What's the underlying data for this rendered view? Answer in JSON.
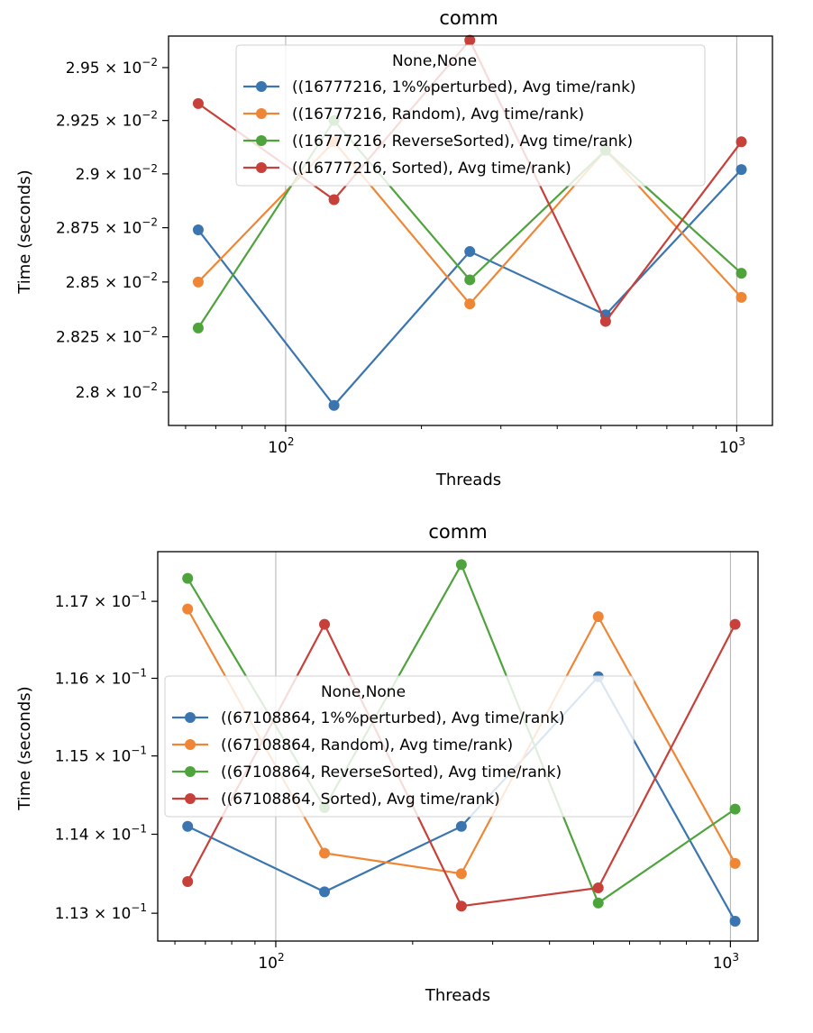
{
  "chart_data": [
    {
      "type": "line",
      "title": "comm",
      "xlabel": "Threads",
      "ylabel": "Time (seconds)",
      "xscale": "log",
      "yscale": "log",
      "grid": "major x",
      "legend_title": "None,None",
      "legend_position": "upper center",
      "x": [
        64,
        128,
        256,
        512,
        1024
      ],
      "xlim": [
        55,
        1200
      ],
      "ylim": [
        0.02785,
        0.02965
      ],
      "x_ticks": [
        {
          "value": 100,
          "label": "10",
          "exp": "2"
        },
        {
          "value": 1000,
          "label": "10",
          "exp": "3"
        }
      ],
      "y_ticks": [
        {
          "value": 0.028,
          "mantissa": "2.8",
          "exp": "−2"
        },
        {
          "value": 0.02825,
          "mantissa": "2.825",
          "exp": "−2"
        },
        {
          "value": 0.0285,
          "mantissa": "2.85",
          "exp": "−2"
        },
        {
          "value": 0.02875,
          "mantissa": "2.875",
          "exp": "−2"
        },
        {
          "value": 0.029,
          "mantissa": "2.9",
          "exp": "−2"
        },
        {
          "value": 0.02925,
          "mantissa": "2.925",
          "exp": "−2"
        },
        {
          "value": 0.0295,
          "mantissa": "2.95",
          "exp": "−2"
        }
      ],
      "series": [
        {
          "name": "((16777216, 1%%perturbed), Avg time/rank)",
          "color": "#3a75b0",
          "values": [
            0.02874,
            0.02794,
            0.02864,
            0.02835,
            0.02902
          ]
        },
        {
          "name": "((16777216, Random), Avg time/rank)",
          "color": "#ef8636",
          "values": [
            0.0285,
            0.02915,
            0.0284,
            0.02911,
            0.02843
          ]
        },
        {
          "name": "((16777216, ReverseSorted), Avg time/rank)",
          "color": "#4fa33c",
          "values": [
            0.02829,
            0.02925,
            0.02851,
            0.02911,
            0.02854
          ]
        },
        {
          "name": "((16777216, Sorted), Avg time/rank)",
          "color": "#c7403a",
          "values": [
            0.02933,
            0.02888,
            0.02963,
            0.02832,
            0.02915
          ]
        }
      ]
    },
    {
      "type": "line",
      "title": "comm",
      "xlabel": "Threads",
      "ylabel": "Time (seconds)",
      "xscale": "log",
      "yscale": "log",
      "grid": "major x",
      "legend_title": "None,None",
      "legend_position": "center left",
      "x": [
        64,
        128,
        256,
        512,
        1024
      ],
      "xlim": [
        55,
        1150
      ],
      "ylim": [
        0.11265,
        0.11765
      ],
      "x_ticks": [
        {
          "value": 100,
          "label": "10",
          "exp": "2"
        },
        {
          "value": 1000,
          "label": "10",
          "exp": "3"
        }
      ],
      "y_ticks": [
        {
          "value": 0.113,
          "mantissa": "1.13",
          "exp": "−1"
        },
        {
          "value": 0.114,
          "mantissa": "1.14",
          "exp": "−1"
        },
        {
          "value": 0.115,
          "mantissa": "1.15",
          "exp": "−1"
        },
        {
          "value": 0.116,
          "mantissa": "1.16",
          "exp": "−1"
        },
        {
          "value": 0.117,
          "mantissa": "1.17",
          "exp": "−1"
        }
      ],
      "series": [
        {
          "name": "((67108864, 1%%perturbed), Avg time/rank)",
          "color": "#3a75b0",
          "values": [
            0.1141,
            0.11327,
            0.1141,
            0.11602,
            0.1129
          ]
        },
        {
          "name": "((67108864, Random), Avg time/rank)",
          "color": "#ef8636",
          "values": [
            0.1169,
            0.11376,
            0.1135,
            0.1168,
            0.11363
          ]
        },
        {
          "name": "((67108864, ReverseSorted), Avg time/rank)",
          "color": "#4fa33c",
          "values": [
            0.1173,
            0.11434,
            0.11748,
            0.11313,
            0.11432
          ]
        },
        {
          "name": "((67108864, Sorted), Avg time/rank)",
          "color": "#c7403a",
          "values": [
            0.1134,
            0.1167,
            0.11309,
            0.11332,
            0.1167
          ]
        }
      ]
    }
  ]
}
